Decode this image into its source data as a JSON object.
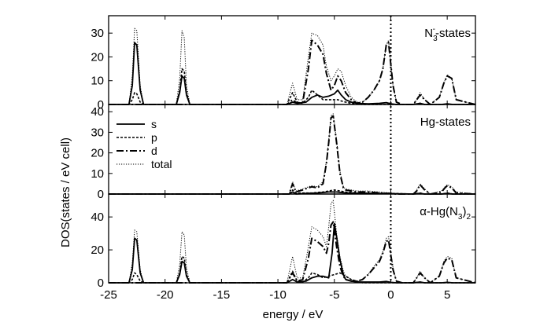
{
  "chart_data": {
    "type": "line",
    "xlabel": "energy / eV",
    "ylabel": "DOS(states / eV cell)",
    "xlim": [
      -25,
      7.5
    ],
    "x_ticks": [
      "-25",
      "-20",
      "-15",
      "-10",
      "-5",
      "0",
      "5"
    ],
    "fermi_level_x": 0,
    "legend": {
      "placement": "upper-left of middle panel",
      "entries": [
        {
          "label": "s",
          "style": "solid"
        },
        {
          "label": "p",
          "style": "dashed"
        },
        {
          "label": "d",
          "style": "dash-dot"
        },
        {
          "label": "total",
          "style": "dotted"
        }
      ]
    },
    "panels": [
      {
        "label_main": "N",
        "label_sub": "3",
        "label_sup": "-",
        "label_rest": "-states",
        "ylim": [
          0,
          36
        ],
        "y_ticks": [
          "0",
          "10",
          "20",
          "30"
        ],
        "series": [
          {
            "style": "s",
            "x": [
              -25,
              -23.2,
              -22.9,
              -22.7,
              -22.5,
              -22.2,
              -21.9,
              -19,
              -18.7,
              -18.5,
              -18.3,
              -18.1,
              -17.8,
              -9.2,
              -8.7,
              -8.3,
              -7.5,
              -7,
              -6.5,
              -6,
              -5.5,
              -5,
              -4.7,
              -4.4,
              -4,
              -3.5,
              -3,
              -2,
              -1,
              -0.4,
              0,
              0.5,
              2,
              2.6,
              3,
              4.5,
              5,
              5.5,
              7.5
            ],
            "y": [
              0,
              0,
              8,
              26,
              25,
              6,
              0,
              0,
              5,
              12,
              11,
              4,
              0,
              0,
              1,
              0.5,
              1,
              3,
              4,
              3,
              3.5,
              4.5,
              6,
              4,
              2,
              1,
              0.5,
              0.3,
              0.5,
              0.8,
              0.3,
              0,
              0,
              0.5,
              0,
              0,
              0.3,
              0,
              0
            ]
          },
          {
            "style": "p",
            "x": [
              -25,
              -23.2,
              -22.9,
              -22.7,
              -22.5,
              -22.2,
              -21.9,
              -19,
              -18.7,
              -18.5,
              -18.3,
              -18.1,
              -17.8,
              -9.2,
              -8.7,
              -8.3,
              -7.8,
              -7.3,
              -7,
              -6.5,
              -6,
              -5.5,
              -5,
              -4.7,
              -4.4,
              -4,
              -3.5,
              -3,
              -2.5,
              0,
              2,
              2.6,
              3,
              7.5
            ],
            "y": [
              0,
              0,
              2,
              5,
              4.5,
              1,
              0,
              0,
              6,
              15,
              14,
              5,
              0,
              0,
              5,
              1,
              0.5,
              3,
              6,
              4,
              2,
              2,
              2,
              2,
              1.5,
              1,
              0.5,
              0.3,
              0,
              0,
              0,
              0.5,
              0,
              0
            ]
          },
          {
            "style": "d",
            "x": [
              -25,
              -19,
              -9.2,
              -8.7,
              -8.3,
              -7.8,
              -7.3,
              -7,
              -6.5,
              -6,
              -5.7,
              -5.3,
              -5,
              -4.7,
              -4.4,
              -4,
              -3.5,
              -3,
              -2.5,
              -2,
              -1.5,
              -1,
              -0.7,
              -0.4,
              -0.2,
              0.2,
              0.5,
              1,
              2,
              2.3,
              2.6,
              3,
              3.5,
              4.3,
              4.7,
              5,
              5.4,
              5.8,
              7.5
            ],
            "y": [
              0,
              0,
              0,
              2,
              0.5,
              1,
              15,
              27,
              25,
              21,
              13,
              6,
              8,
              12,
              10,
              5,
              2,
              0.5,
              1,
              3,
              6,
              10,
              15,
              25,
              26,
              8,
              1,
              0,
              0,
              2,
              4,
              2,
              0,
              3,
              9,
              12,
              11,
              2,
              0
            ]
          },
          {
            "style": "total",
            "x": [
              -25,
              -23.2,
              -22.9,
              -22.7,
              -22.5,
              -22.2,
              -21.9,
              -19,
              -18.7,
              -18.5,
              -18.3,
              -18.1,
              -17.8,
              -9.2,
              -8.7,
              -8.3,
              -7.8,
              -7.3,
              -7,
              -6.5,
              -6,
              -5.7,
              -5.3,
              -5,
              -4.7,
              -4.4,
              -4,
              -3.5,
              -3,
              -2.5,
              -2,
              -1.5,
              -1,
              -0.7,
              -0.4,
              -0.2,
              0.2,
              0.5,
              1,
              2,
              2.3,
              2.6,
              3,
              3.5,
              4.3,
              4.7,
              5,
              5.4,
              5.8,
              7.5
            ],
            "y": [
              0,
              0,
              12,
              32,
              31,
              8,
              0,
              0,
              11,
              31,
              28,
              8,
              0,
              0,
              9,
              2,
              2,
              20,
              30,
              29,
              25,
              16,
              10,
              12,
              15,
              14,
              8,
              3,
              1,
              1,
              3,
              6,
              10,
              15,
              25,
              27,
              8,
              1,
              0,
              0,
              2,
              5,
              2,
              0,
              3,
              9,
              12.5,
              11,
              2,
              0
            ]
          }
        ]
      },
      {
        "label_main": "Hg-states",
        "label_sub": "",
        "label_sup": "",
        "label_rest": "",
        "ylim": [
          0,
          42
        ],
        "y_ticks": [
          "0",
          "10",
          "20",
          "30",
          "40"
        ],
        "series": [
          {
            "style": "s",
            "x": [
              -25,
              -9,
              -8.7,
              -8.4,
              -7.5,
              -6.5,
              -5.5,
              -4.8,
              -4,
              0,
              2,
              2.6,
              3,
              4.5,
              5,
              5.5,
              7.5
            ],
            "y": [
              0,
              0,
              1,
              0,
              0.3,
              0.5,
              1,
              1,
              0.5,
              0.2,
              0,
              0.3,
              0,
              0,
              0.3,
              0,
              0
            ]
          },
          {
            "style": "p",
            "x": [
              -25,
              -9,
              -8.7,
              -8.4,
              -7,
              -6,
              -5.5,
              -5,
              -4.5,
              -4,
              -3,
              0,
              2,
              2.6,
              3,
              4.5,
              5,
              5.5,
              7.5
            ],
            "y": [
              0,
              0,
              2,
              0.5,
              0.5,
              1,
              1.5,
              2,
              1.5,
              1,
              0.5,
              0.3,
              0,
              0.5,
              0,
              0,
              0.5,
              0,
              0
            ]
          },
          {
            "style": "d",
            "x": [
              -25,
              -9,
              -8.7,
              -8.4,
              -7.8,
              -7.3,
              -7,
              -6.5,
              -6,
              -5.7,
              -5.5,
              -5.3,
              -5.1,
              -4.8,
              -4.5,
              -4.2,
              -4,
              -3.5,
              -3,
              -2,
              -1,
              0,
              0.5,
              2,
              2.3,
              2.6,
              3,
              3.5,
              4.5,
              4.8,
              5,
              5.4,
              5.8,
              7.5
            ],
            "y": [
              0,
              0,
              5,
              1,
              2,
              3,
              3.5,
              3,
              5,
              15,
              25,
              37,
              38,
              25,
              10,
              3,
              2,
              1.5,
              1,
              1,
              0.5,
              0.3,
              0,
              0,
              1.5,
              4.5,
              2,
              0,
              1,
              3,
              4,
              3,
              0.5,
              0
            ]
          },
          {
            "style": "total",
            "x": [
              -25,
              -9,
              -8.7,
              -8.4,
              -7.8,
              -7.3,
              -7,
              -6.5,
              -6,
              -5.7,
              -5.5,
              -5.3,
              -5.1,
              -4.8,
              -4.5,
              -4.2,
              -4,
              -3.5,
              -3,
              -2,
              -1,
              0,
              0.5,
              2,
              2.3,
              2.6,
              3,
              3.5,
              4.5,
              4.8,
              5,
              5.4,
              5.8,
              7.5
            ],
            "y": [
              0,
              0,
              6,
              1.5,
              2.5,
              3.5,
              4,
              3.5,
              6,
              16,
              26,
              38,
              39,
              26,
              11,
              3.5,
              2.5,
              2,
              1.5,
              1.5,
              1,
              0.5,
              0,
              0,
              2,
              5,
              2.5,
              0,
              1.5,
              3.5,
              4.5,
              3.5,
              1,
              0
            ]
          }
        ]
      },
      {
        "label_main": "α-Hg(N",
        "label_sub": "3",
        "label_sup": "",
        "label_rest": ")2",
        "ylim": [
          0,
          52
        ],
        "y_ticks": [
          "0",
          "20",
          "40"
        ],
        "series": [
          {
            "style": "s",
            "x": [
              -25,
              -23.2,
              -22.9,
              -22.7,
              -22.5,
              -22.2,
              -21.9,
              -19,
              -18.7,
              -18.5,
              -18.3,
              -18.1,
              -17.8,
              -9.2,
              -8.7,
              -8.3,
              -7.5,
              -7,
              -6.5,
              -6,
              -5.5,
              -5.2,
              -5,
              -4.8,
              -4.5,
              -4.2,
              -4,
              -3.5,
              -3,
              -2,
              -1,
              -0.4,
              0,
              0.5,
              2,
              2.6,
              3,
              4.5,
              5,
              5.5,
              7.5
            ],
            "y": [
              0,
              0,
              8,
              27,
              26,
              6,
              0,
              0,
              5,
              13,
              12,
              4,
              0,
              0,
              2,
              0.5,
              1,
              3,
              4,
              4,
              3,
              18,
              36,
              28,
              14,
              5,
              2,
              1,
              0.5,
              0.5,
              0.5,
              0.8,
              0.3,
              0,
              0,
              0.5,
              0,
              0,
              0.3,
              0,
              0
            ]
          },
          {
            "style": "p",
            "x": [
              -25,
              -23.2,
              -22.9,
              -22.7,
              -22.5,
              -22.2,
              -21.9,
              -19,
              -18.7,
              -18.5,
              -18.3,
              -18.1,
              -17.8,
              -9.2,
              -8.7,
              -8.3,
              -7.8,
              -7.3,
              -7,
              -6.5,
              -6,
              -5.5,
              -5,
              -4.5,
              -4,
              -3.5,
              -3,
              -2.5,
              0,
              2,
              2.6,
              3,
              7.5
            ],
            "y": [
              0,
              0,
              2,
              6,
              5,
              1,
              0,
              0,
              6,
              16,
              15,
              5,
              0,
              0,
              7,
              1,
              0.5,
              3,
              6,
              5,
              3,
              4,
              5,
              6,
              4,
              2,
              1,
              0,
              0,
              0,
              0.5,
              0,
              0
            ]
          },
          {
            "style": "d",
            "x": [
              -25,
              -19,
              -9.2,
              -8.7,
              -8.3,
              -7.8,
              -7.3,
              -7,
              -6.5,
              -6,
              -5.7,
              -5.5,
              -5.3,
              -5.1,
              -4.8,
              -4.5,
              -4.2,
              -4,
              -3.5,
              -3,
              -2.5,
              -2,
              -1.5,
              -1,
              -0.7,
              -0.4,
              -0.2,
              0.2,
              0.5,
              1,
              2,
              2.3,
              2.6,
              3,
              3.5,
              4.3,
              4.7,
              5,
              5.4,
              5.8,
              7.5
            ],
            "y": [
              0,
              0,
              0,
              6,
              1,
              2,
              15,
              27,
              25,
              22,
              18,
              24,
              35,
              37,
              22,
              10,
              4,
              2,
              1,
              1,
              2,
              5,
              9,
              13,
              18,
              25,
              26,
              8,
              1,
              0,
              0,
              3,
              6,
              3,
              0,
              4,
              12,
              15,
              14,
              3,
              0
            ]
          },
          {
            "style": "total",
            "x": [
              -25,
              -23.2,
              -22.9,
              -22.7,
              -22.5,
              -22.2,
              -21.9,
              -19,
              -18.7,
              -18.5,
              -18.3,
              -18.1,
              -17.8,
              -9.2,
              -8.7,
              -8.3,
              -7.8,
              -7.3,
              -7,
              -6.5,
              -6,
              -5.7,
              -5.5,
              -5.3,
              -5.1,
              -4.8,
              -4.5,
              -4.2,
              -4,
              -3.5,
              -3,
              -2.5,
              -2,
              -1.5,
              -1,
              -0.7,
              -0.4,
              -0.2,
              0.2,
              0.5,
              1,
              2,
              2.3,
              2.6,
              3,
              3.5,
              4.3,
              4.7,
              5,
              5.4,
              5.8,
              7.5
            ],
            "y": [
              0,
              0,
              12,
              32,
              31,
              8,
              0,
              0,
              11,
              31,
              29,
              9,
              0,
              0,
              16,
              3,
              3,
              22,
              34,
              32,
              28,
              22,
              34,
              48,
              50,
              30,
              16,
              7,
              4,
              2,
              1,
              2,
              5,
              10,
              14,
              19,
              27,
              28,
              9,
              1,
              0,
              0,
              3,
              7,
              3,
              0,
              4,
              13,
              16,
              15,
              3,
              0
            ]
          }
        ]
      }
    ]
  }
}
